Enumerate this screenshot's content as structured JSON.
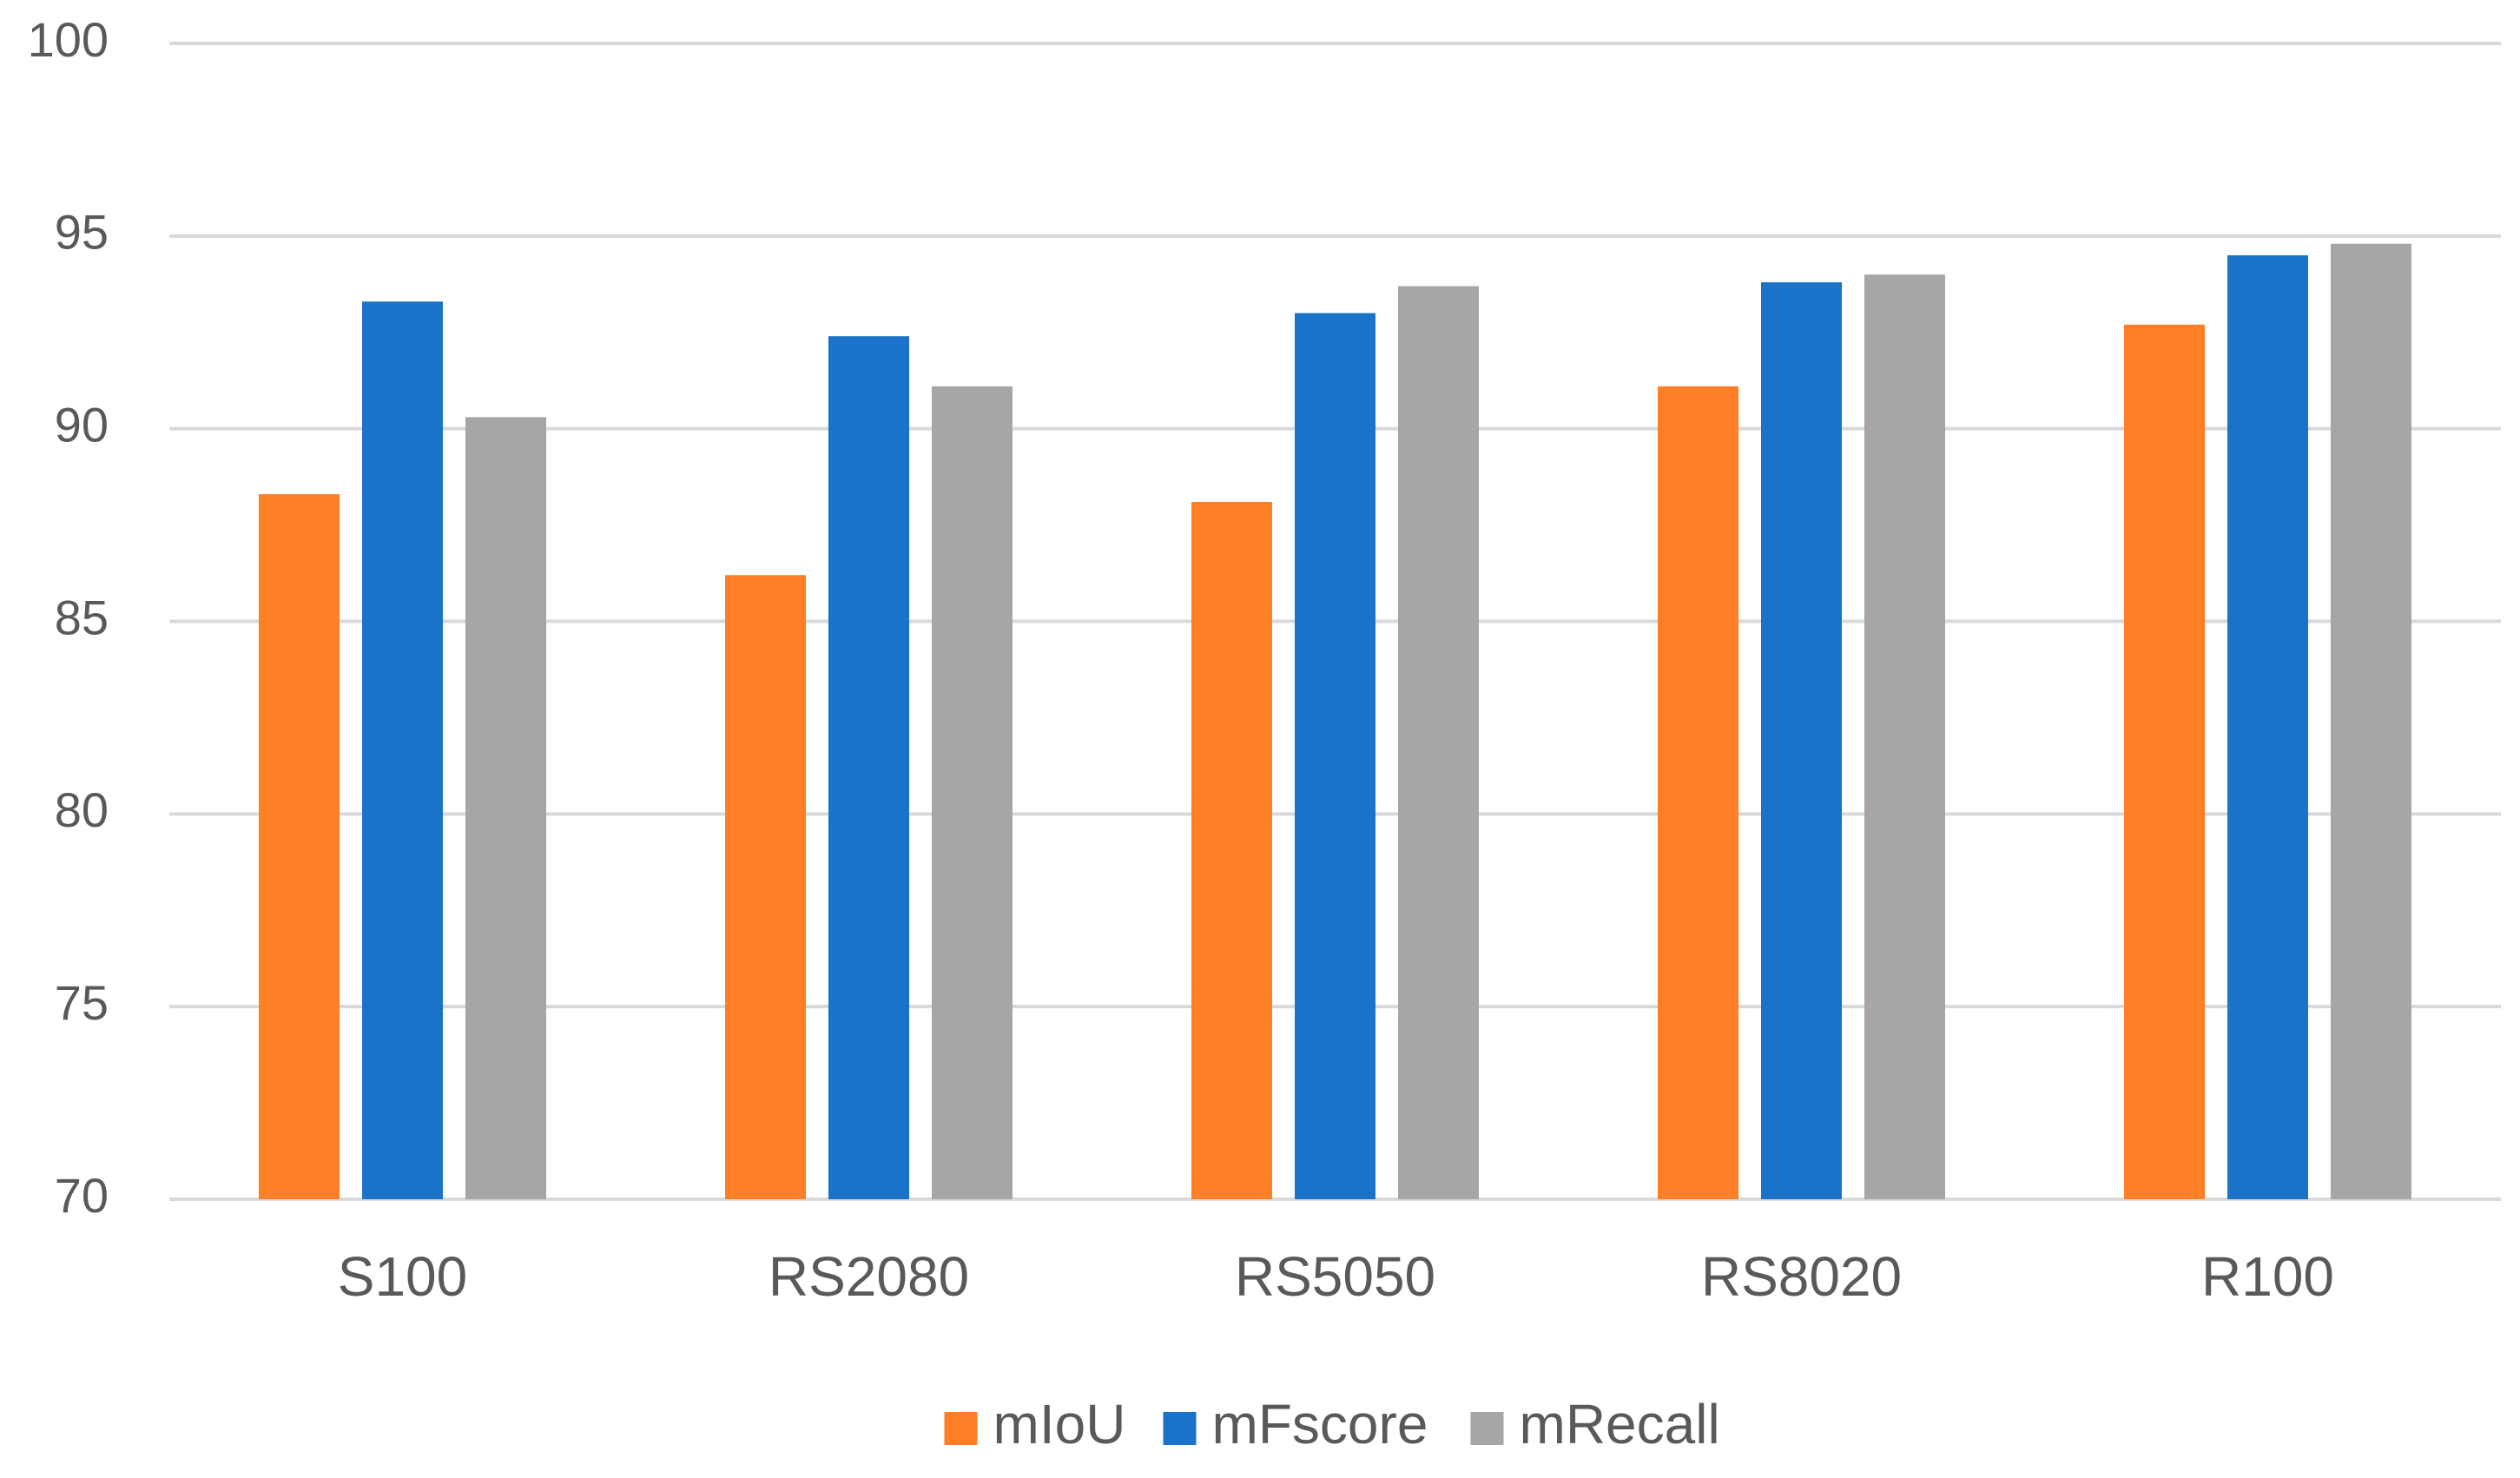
{
  "chart_data": {
    "type": "bar",
    "title": "",
    "xlabel": "",
    "ylabel": "",
    "ylim": [
      70,
      100
    ],
    "yticks": [
      70,
      75,
      80,
      85,
      90,
      95,
      100
    ],
    "grid": true,
    "legend_position": "bottom",
    "categories": [
      "S100",
      "RS2080",
      "RS5050",
      "RS8020",
      "R100"
    ],
    "series": [
      {
        "name": "mIoU",
        "color": "#ff7f27",
        "values": [
          88.3,
          86.2,
          88.1,
          91.1,
          92.7
        ]
      },
      {
        "name": "mFscore",
        "color": "#1a73c8",
        "values": [
          93.3,
          92.4,
          93.0,
          93.8,
          94.5
        ]
      },
      {
        "name": "mRecall",
        "color": "#a6a6a6",
        "values": [
          90.3,
          91.1,
          93.7,
          94.0,
          94.8
        ]
      }
    ]
  }
}
